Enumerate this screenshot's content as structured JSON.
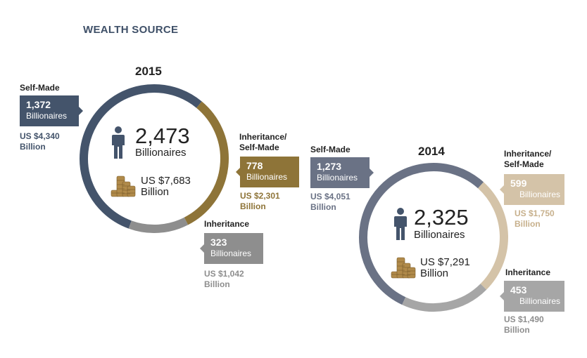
{
  "title": "WEALTH SOURCE",
  "colors": {
    "self_made": "#44546b",
    "inheritance_self_made_2015": "#8e7438",
    "inheritance_2015": "#8e8e8e",
    "self_made_2014": "#6a7285",
    "inheritance_self_made_2014": "#d4c3a8",
    "inheritance_2014": "#a6a6a6",
    "coin": "#b08a4a",
    "person": "#44546b"
  },
  "icons": [
    "person-icon",
    "coins-icon"
  ],
  "chart_data": [
    {
      "type": "pie",
      "year": "2015",
      "total_count": "2,473",
      "total_unit": "Billionaires",
      "total_wealth": "US $7,683",
      "total_wealth_unit": "Billion",
      "segments": [
        {
          "name": "Self-Made",
          "count": 1372,
          "count_label": "1,372",
          "unit": "Billionaires",
          "wealth": "US $4,340",
          "wealth_unit": "Billion"
        },
        {
          "name": "Inheritance/ Self-Made",
          "count": 778,
          "count_label": "778",
          "unit": "Billionaires",
          "wealth": "US $2,301",
          "wealth_unit": "Billion"
        },
        {
          "name": "Inheritance",
          "count": 323,
          "count_label": "323",
          "unit": "Billionaires",
          "wealth": "US $1,042",
          "wealth_unit": "Billion"
        }
      ]
    },
    {
      "type": "pie",
      "year": "2014",
      "total_count": "2,325",
      "total_unit": "Billionaires",
      "total_wealth": "US $7,291",
      "total_wealth_unit": "Billion",
      "segments": [
        {
          "name": "Self-Made",
          "count": 1273,
          "count_label": "1,273",
          "unit": "Billionaires",
          "wealth": "US $4,051",
          "wealth_unit": "Billion"
        },
        {
          "name": "Inheritance/ Self-Made",
          "count": 599,
          "count_label": "599",
          "unit": "Billionaires",
          "wealth": "US $1,750",
          "wealth_unit": "Billion"
        },
        {
          "name": "Inheritance",
          "count": 453,
          "count_label": "453",
          "unit": "Billionaires",
          "wealth": "US $1,490",
          "wealth_unit": "Billion"
        }
      ]
    }
  ]
}
